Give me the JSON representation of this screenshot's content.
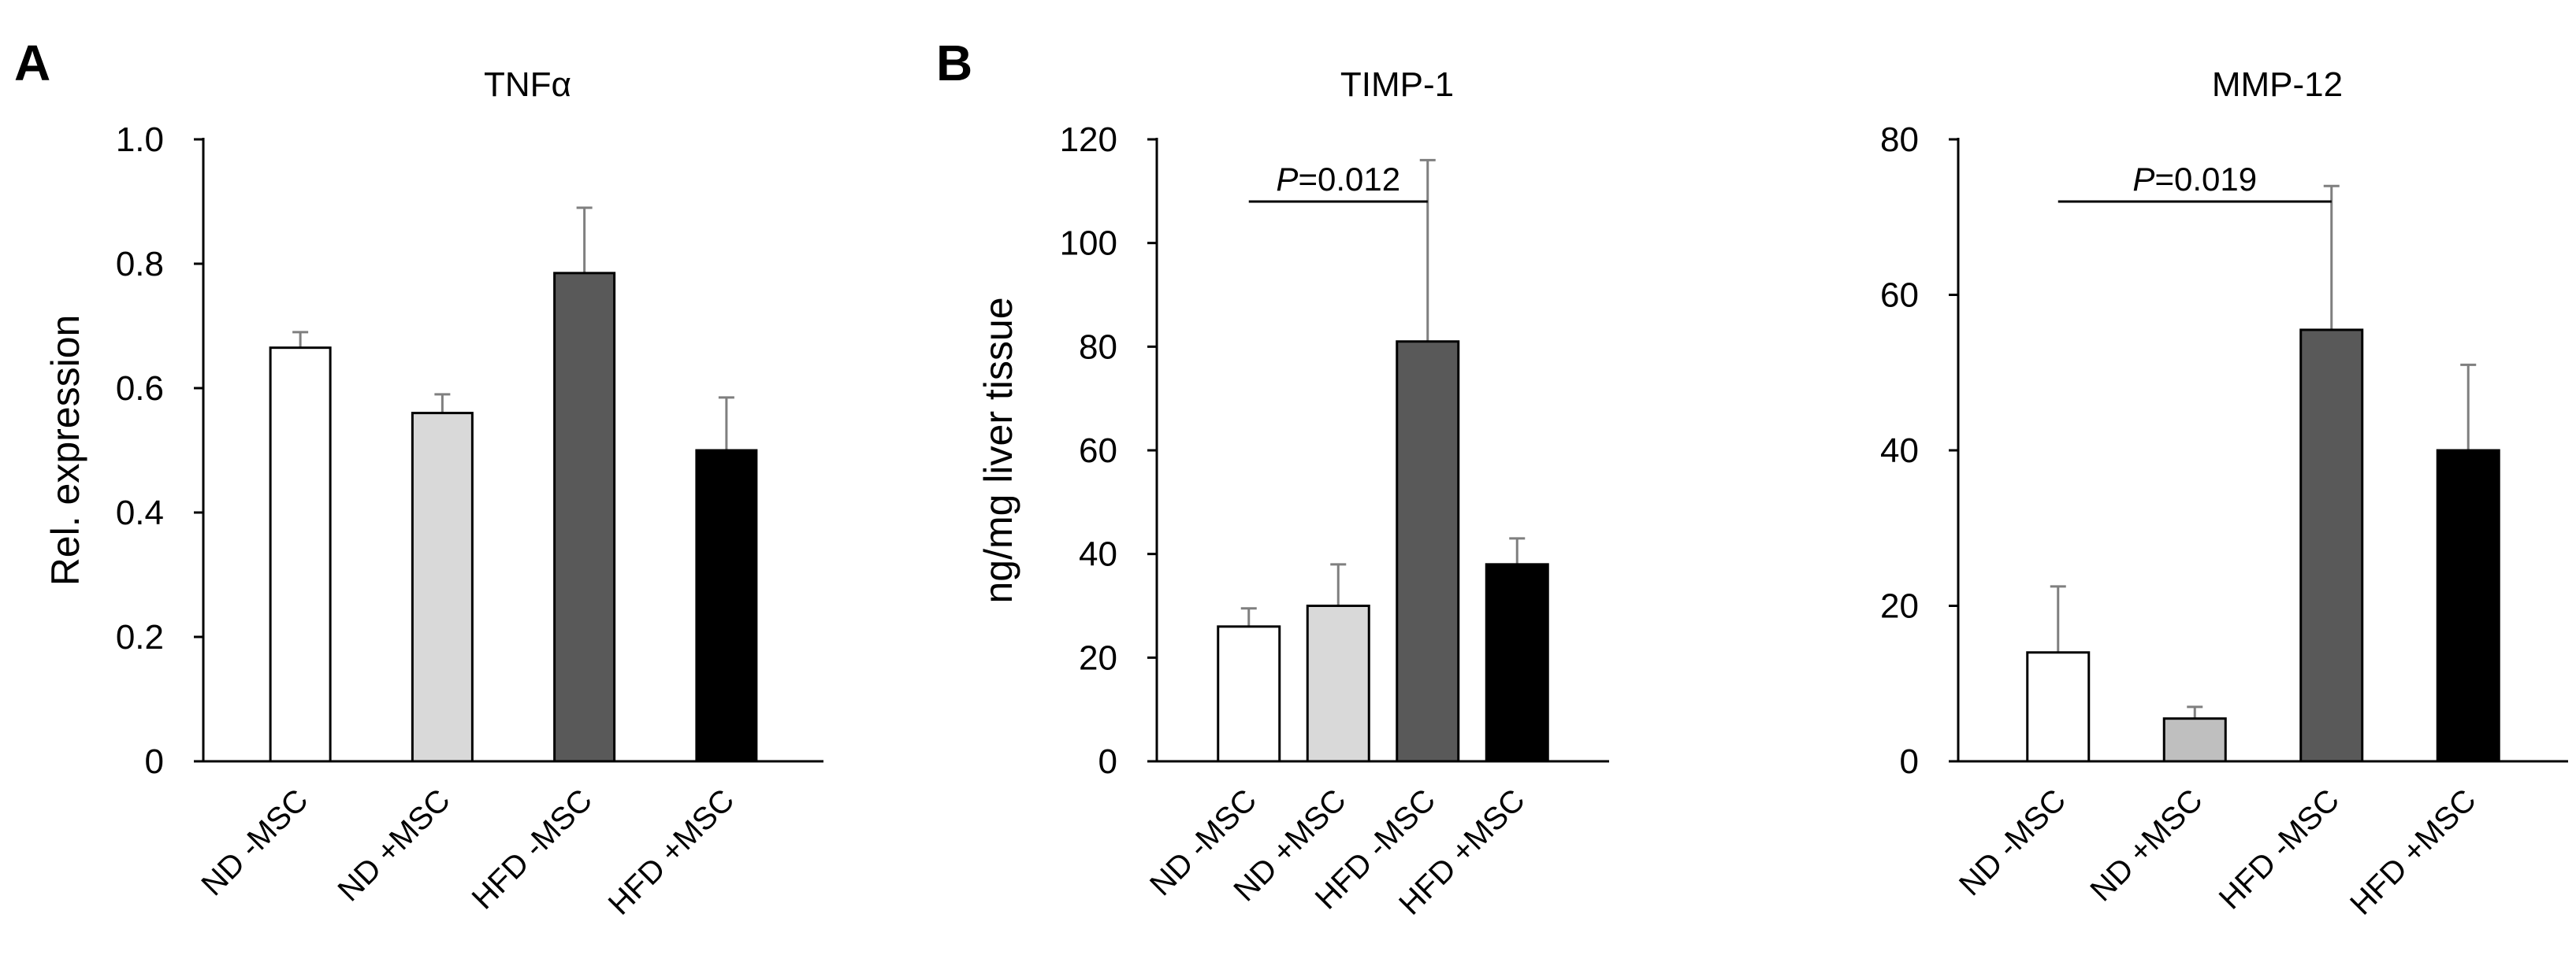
{
  "panels": [
    {
      "letter": "A"
    },
    {
      "letter": "B"
    }
  ],
  "chart_data": [
    {
      "type": "bar",
      "panel": "A",
      "title": "TNFα",
      "xlabel": "",
      "ylabel": "Rel.  expression",
      "ylim": [
        0,
        1.0
      ],
      "yticks": [
        "0",
        "0.2",
        "0.4",
        "0.6",
        "0.8",
        "1.0"
      ],
      "categories": [
        "ND -MSC",
        "ND +MSC",
        "HFD -MSC",
        "HFD +MSC"
      ],
      "values": [
        0.665,
        0.56,
        0.785,
        0.5
      ],
      "errors": [
        0.025,
        0.03,
        0.105,
        0.085
      ],
      "bar_colors": [
        "#ffffff",
        "#d9d9d9",
        "#595959",
        "#000000"
      ],
      "significance": null
    },
    {
      "type": "bar",
      "panel": "B",
      "title": "TIMP-1",
      "xlabel": "",
      "ylabel": "ng/mg liver tissue",
      "ylim": [
        0,
        120
      ],
      "yticks": [
        "0",
        "20",
        "40",
        "60",
        "80",
        "100",
        "120"
      ],
      "categories": [
        "ND -MSC",
        "ND +MSC",
        "HFD -MSC",
        "HFD +MSC"
      ],
      "values": [
        26,
        30,
        81,
        38
      ],
      "errors": [
        3.5,
        8,
        35,
        5
      ],
      "bar_colors": [
        "#ffffff",
        "#d9d9d9",
        "#595959",
        "#000000"
      ],
      "significance": {
        "from": 0,
        "to": 2,
        "y": 108,
        "label_prefix": "P",
        "label_value": "=0.012"
      }
    },
    {
      "type": "bar",
      "panel": "B",
      "title": "MMP-12",
      "xlabel": "",
      "ylabel": "",
      "ylim": [
        0,
        80
      ],
      "yticks": [
        "0",
        "20",
        "40",
        "60",
        "80"
      ],
      "categories": [
        "ND -MSC",
        "ND +MSC",
        "HFD -MSC",
        "HFD +MSC"
      ],
      "values": [
        14,
        5.5,
        55.5,
        40
      ],
      "errors": [
        8.5,
        1.5,
        18.5,
        11
      ],
      "bar_colors": [
        "#ffffff",
        "#bfbfbf",
        "#595959",
        "#000000"
      ],
      "significance": {
        "from": 0,
        "to": 2,
        "y": 72,
        "label_prefix": "P",
        "label_value": "=0.019"
      }
    }
  ]
}
